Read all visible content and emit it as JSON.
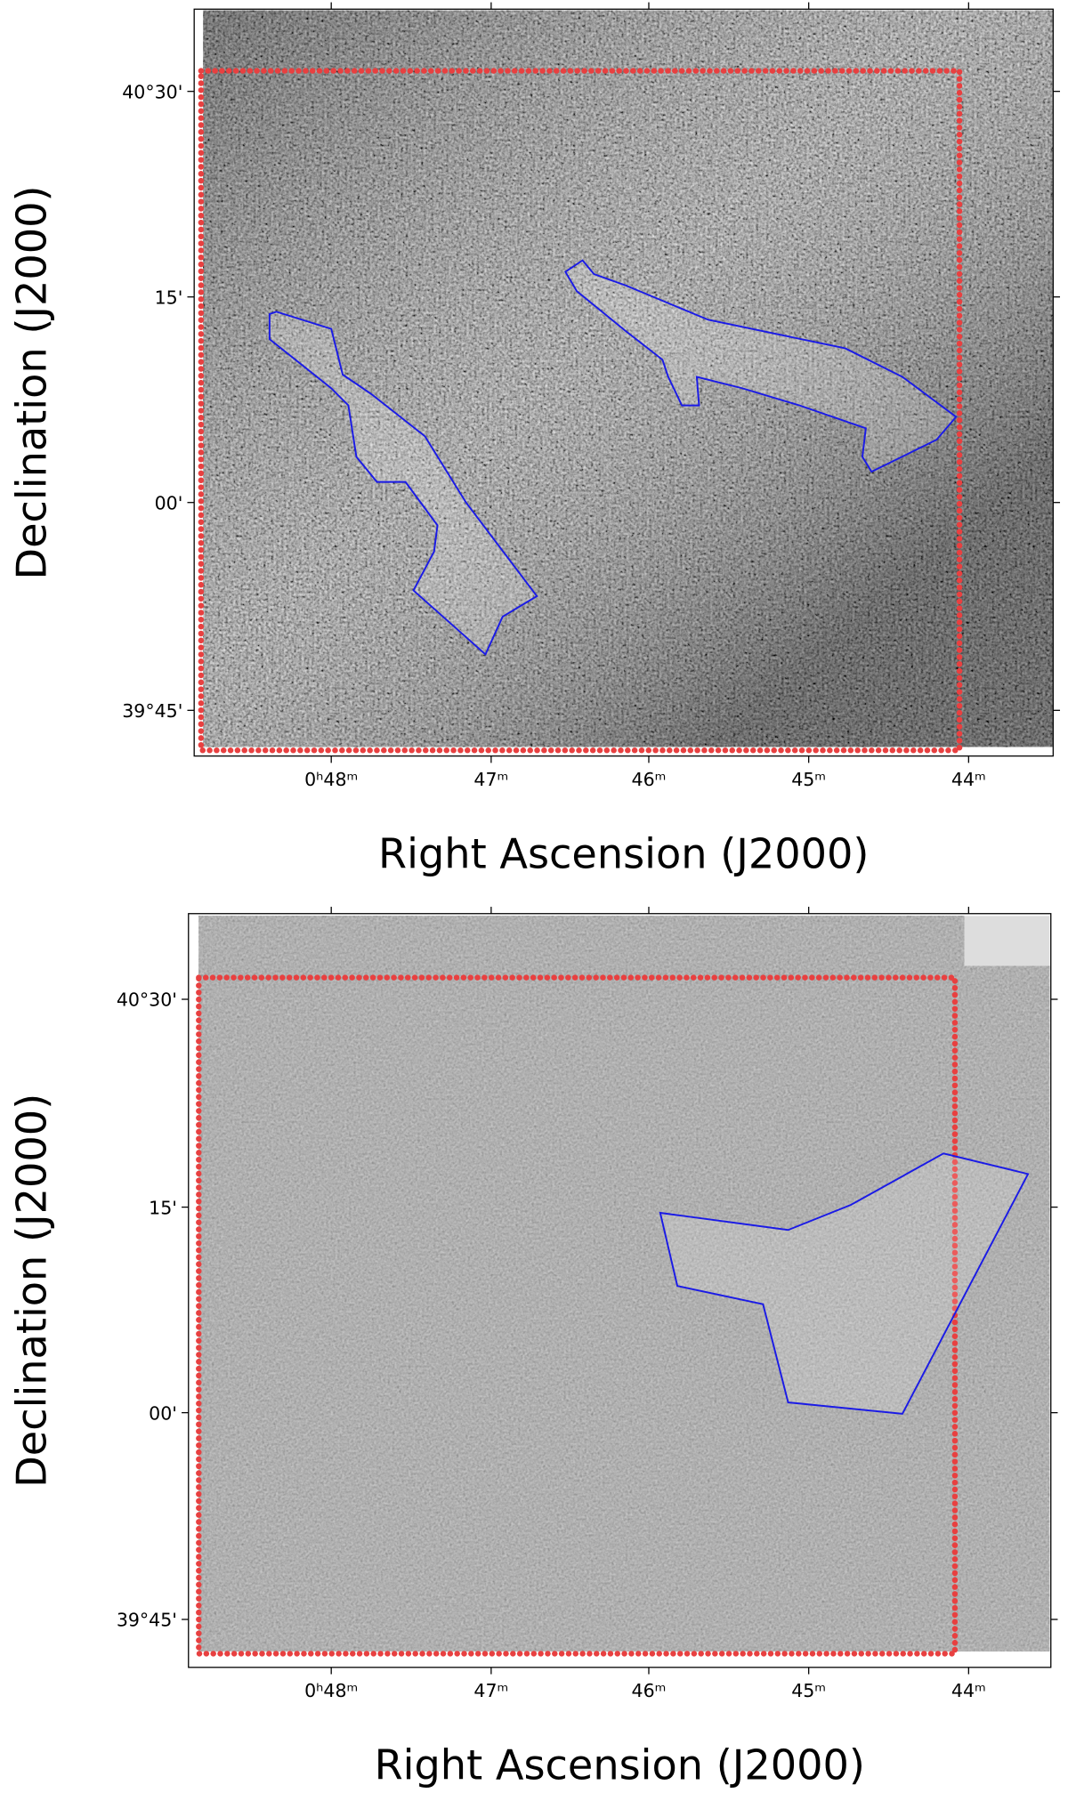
{
  "panels": [
    {
      "y_label": "Declination (J2000)",
      "x_label": "Right Ascension (J2000)",
      "yticks": [
        "40°30'",
        "15'",
        "00'",
        "39°45'"
      ],
      "xticks": [
        "0ʰ48ᵐ",
        "47ᵐ",
        "46ᵐ",
        "45ᵐ",
        "44ᵐ"
      ]
    },
    {
      "y_label": "Declination (J2000)",
      "x_label": "Right Ascension (J2000)",
      "yticks": [
        "40°30'",
        "15'",
        "00'",
        "39°45'"
      ],
      "xticks": [
        "0ʰ48ᵐ",
        "47ᵐ",
        "46ᵐ",
        "45ᵐ",
        "44ᵐ"
      ]
    }
  ]
}
